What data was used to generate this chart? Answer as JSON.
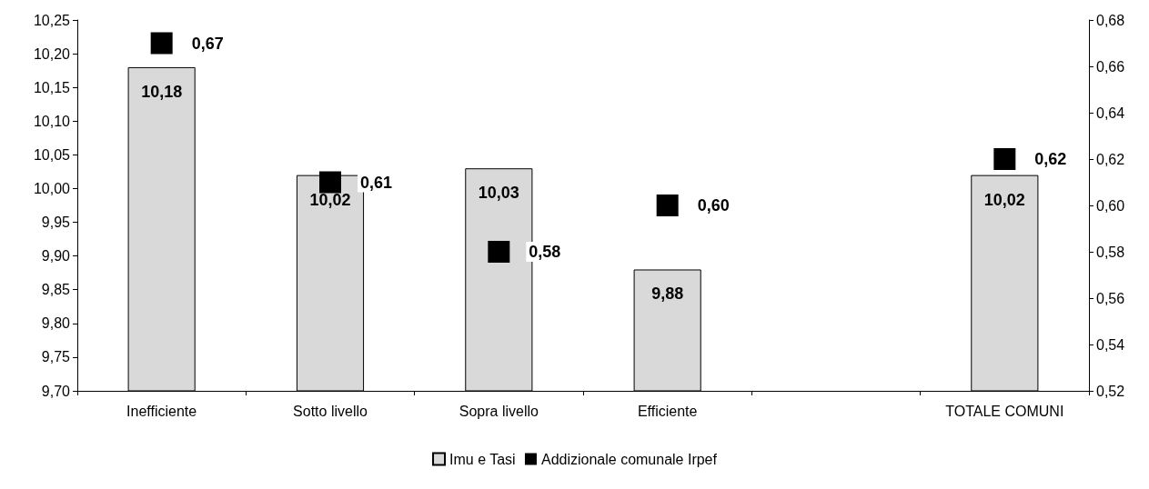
{
  "chart_data": {
    "type": "bar",
    "categories": [
      "Inefficiente",
      "Sotto livello",
      "Sopra livello",
      "Efficiente",
      null,
      "TOTALE COMUNI"
    ],
    "series": [
      {
        "name": "Imu e Tasi",
        "color": "#d9d9d9",
        "values": [
          10.18,
          10.02,
          10.03,
          9.88,
          null,
          10.02
        ],
        "value_labels": [
          "10,18",
          "10,02",
          "10,03",
          "9,88",
          null,
          "10,02"
        ]
      },
      {
        "name": "Addizionale comunale Irpef",
        "type": "scatter",
        "axis": "y2",
        "color": "#000000",
        "values": [
          0.67,
          0.61,
          0.58,
          0.6,
          null,
          0.62
        ],
        "value_labels": [
          "0,67",
          "0,61",
          "0,58",
          "0,60",
          null,
          "0,62"
        ]
      }
    ],
    "ylim": [
      9.7,
      10.25
    ],
    "yticks": [
      {
        "value": 9.7,
        "label": "9,70"
      },
      {
        "value": 9.75,
        "label": "9,75"
      },
      {
        "value": 9.8,
        "label": "9,80"
      },
      {
        "value": 9.85,
        "label": "9,85"
      },
      {
        "value": 9.9,
        "label": "9,90"
      },
      {
        "value": 9.95,
        "label": "9,95"
      },
      {
        "value": 10,
        "label": "10,00"
      },
      {
        "value": 10.05,
        "label": "10,05"
      },
      {
        "value": 10.1,
        "label": "10,10"
      },
      {
        "value": 10.15,
        "label": "10,15"
      },
      {
        "value": 10.2,
        "label": "10,20"
      },
      {
        "value": 10.25,
        "label": "10,25"
      }
    ],
    "y2lim": [
      0.52,
      0.68
    ],
    "y2ticks": [
      {
        "value": 0.52,
        "label": "0,52"
      },
      {
        "value": 0.54,
        "label": "0,54"
      },
      {
        "value": 0.56,
        "label": "0,56"
      },
      {
        "value": 0.58,
        "label": "0,58"
      },
      {
        "value": 0.6,
        "label": "0,60"
      },
      {
        "value": 0.62,
        "label": "0,62"
      },
      {
        "value": 0.64,
        "label": "0,64"
      },
      {
        "value": 0.66,
        "label": "0,66"
      },
      {
        "value": 0.68,
        "label": "0,68"
      }
    ],
    "marker": "square",
    "grid": false,
    "legend": "bottom"
  }
}
